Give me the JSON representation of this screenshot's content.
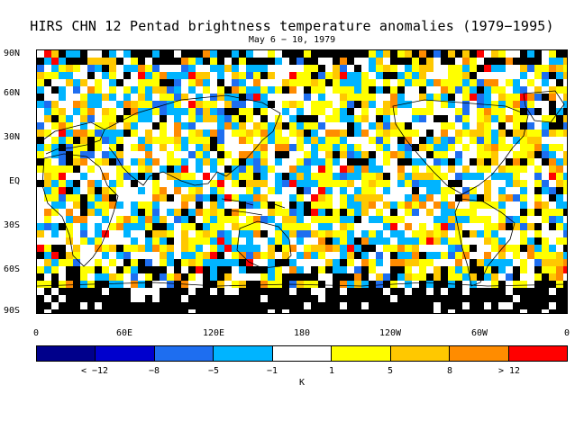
{
  "title": "HIRS CHN 12 Pentad brightness temperature anomalies (1979−1995)",
  "subtitle": "May 6 − 10, 1979",
  "lat_labels": [
    "90N",
    "60N",
    "30N",
    "EQ",
    "30S",
    "60S",
    "90S"
  ],
  "lon_labels": [
    "0",
    "60E",
    "120E",
    "180",
    "120W",
    "60W",
    "0"
  ],
  "colorbar": {
    "colors": [
      "#00008b",
      "#0000cd",
      "#1e6ef0",
      "#00b4ff",
      "#ffffff",
      "#ffff00",
      "#ffc800",
      "#ff8c00",
      "#ff0000"
    ],
    "labels": [
      "< −12",
      "−8",
      "−5",
      "−1",
      "1",
      "5",
      "8",
      "> 12"
    ],
    "unit": "K"
  }
}
